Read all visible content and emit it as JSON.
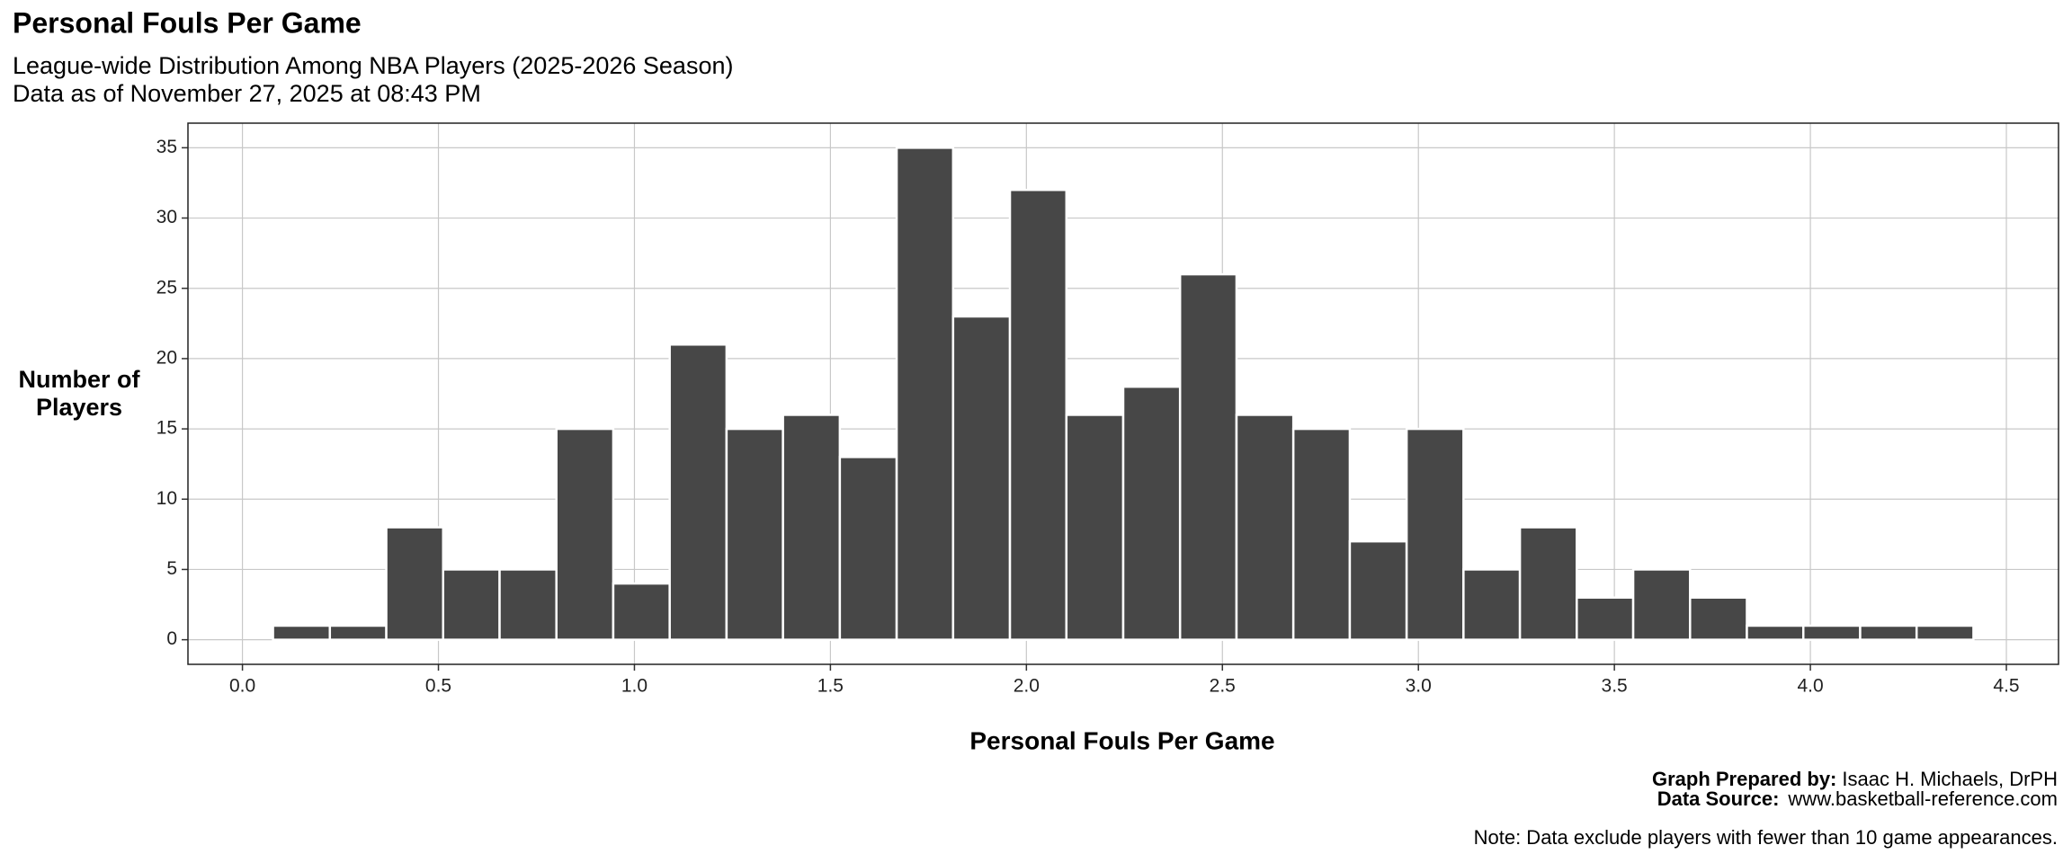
{
  "chart_data": {
    "type": "histogram",
    "title": "Personal Fouls Per Game",
    "subtitle": [
      "League-wide Distribution Among NBA Players (2025-2026 Season)",
      "Data as of November 27, 2025 at 08:43 PM"
    ],
    "xlabel": "Personal Fouls Per Game",
    "ylabel": [
      "Number of",
      "Players"
    ],
    "bins": [
      0.078,
      0.223,
      0.367,
      0.512,
      0.656,
      0.801,
      0.946,
      1.09,
      1.235,
      1.379,
      1.524,
      1.669,
      1.813,
      1.958,
      2.102,
      2.247,
      2.392,
      2.536,
      2.681,
      2.825,
      2.97,
      3.115,
      3.259,
      3.404,
      3.548,
      3.693,
      3.838,
      3.982,
      4.127,
      4.271,
      4.416
    ],
    "values": [
      1,
      1,
      8,
      5,
      5,
      15,
      4,
      21,
      15,
      16,
      13,
      35,
      23,
      32,
      16,
      18,
      26,
      16,
      15,
      7,
      15,
      5,
      8,
      3,
      5,
      3,
      1,
      1,
      1,
      1
    ],
    "color": "#474747",
    "xlim": [
      -0.139,
      4.633
    ],
    "ylim": [
      -1.75,
      36.75
    ],
    "xticks": [
      {
        "value": 0,
        "label": "0.0"
      },
      0.5,
      {
        "value": 1,
        "label": "1.0"
      },
      1.5,
      {
        "value": 2,
        "label": "2.0"
      },
      2.5,
      {
        "value": 3,
        "label": "3.0"
      },
      3.5,
      {
        "value": 4,
        "label": "4.0"
      },
      4.5
    ],
    "yticks": [
      0,
      5,
      10,
      15,
      20,
      25,
      30,
      35
    ],
    "grid": true,
    "annotations": [
      {
        "label": "Graph Prepared by:",
        "text": "Isaac H. Michaels, DrPH"
      },
      {
        "label": "Data Source:",
        "text": "www.basketball-reference.com"
      },
      {
        "text": "Note: Data exclude players with fewer than 10 game appearances."
      }
    ]
  }
}
